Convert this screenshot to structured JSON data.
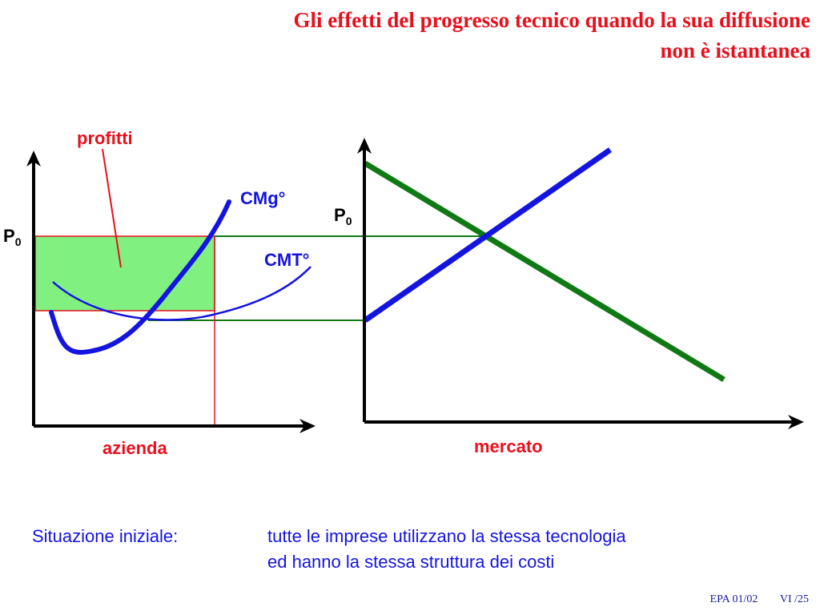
{
  "title": {
    "line1": "Gli effetti del progresso tecnico quando la sua diffusione",
    "line2": "non è istantanea"
  },
  "left_diagram": {
    "price_label": "P",
    "price_sub": "0",
    "profit_label": "profitti",
    "mc_label": "CMg°",
    "atc_label": "CMT°",
    "x_label": "azienda"
  },
  "right_diagram": {
    "price_label": "P",
    "price_sub": "0",
    "x_label": "mercato"
  },
  "note": {
    "key": "Situazione iniziale:",
    "line1": "tutte le imprese utilizzano la stessa tecnologia",
    "line2": "ed hanno la stessa struttura dei costi"
  },
  "footer": {
    "left": "EPA 01/02",
    "right": "VI /25"
  },
  "colors": {
    "title": "#e8101c",
    "demand": "#0f7a14",
    "supply": "#1414e0",
    "profit_fill": "#80f080",
    "red_line": "#e8101c"
  }
}
